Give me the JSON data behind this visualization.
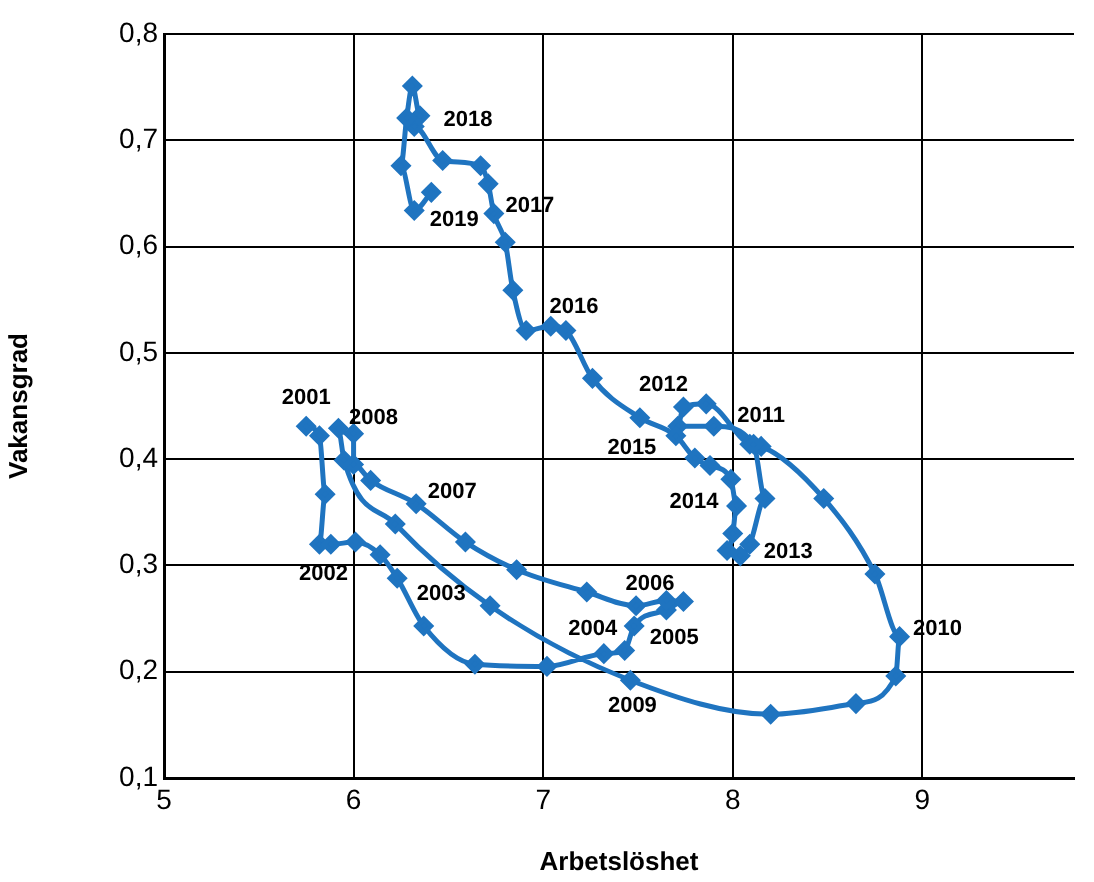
{
  "chart_data": {
    "type": "line",
    "xlabel": "Arbetslöshet",
    "ylabel": "Vakansgrad",
    "marker": "diamond",
    "line_style": "solid",
    "grid": true,
    "legend": false,
    "xlim": [
      5,
      9.8
    ],
    "xticks": [
      5,
      6,
      7,
      8,
      9
    ],
    "ylim": [
      0.1,
      0.8
    ],
    "yticks": [
      {
        "value": 0.1,
        "label": "0,1"
      },
      {
        "value": 0.2,
        "label": "0,2"
      },
      {
        "value": 0.3,
        "label": "0,3"
      },
      {
        "value": 0.4,
        "label": "0,4"
      },
      {
        "value": 0.5,
        "label": "0,5"
      },
      {
        "value": 0.6,
        "label": "0,6"
      },
      {
        "value": 0.7,
        "label": "0,7"
      },
      {
        "value": 0.8,
        "label": "0,8"
      }
    ],
    "series": [
      {
        "color": "#1f74c0",
        "x": [
          5.75,
          5.82,
          5.85,
          5.82,
          5.88,
          6.01,
          6.14,
          6.23,
          6.37,
          6.64,
          7.02,
          7.32,
          7.43,
          7.48,
          7.65,
          7.74,
          7.65,
          7.49,
          7.23,
          6.86,
          6.59,
          6.33,
          6.09,
          6.0,
          6.0,
          5.92,
          5.95,
          6.22,
          6.72,
          7.46,
          8.2,
          8.65,
          8.86,
          8.88,
          8.75,
          8.48,
          8.15,
          8.09,
          7.86,
          7.74,
          7.71,
          7.9,
          8.11,
          8.17,
          8.09,
          8.04,
          7.97,
          8.0,
          8.02,
          7.99,
          7.88,
          7.8,
          7.7,
          7.51,
          7.26,
          7.12,
          7.04,
          6.91,
          6.84,
          6.8,
          6.74,
          6.71,
          6.67,
          6.47,
          6.32,
          6.35,
          6.31,
          6.28,
          6.25,
          6.32,
          6.41
        ],
        "values": [
          0.431,
          0.422,
          0.367,
          0.32,
          0.32,
          0.322,
          0.31,
          0.288,
          0.243,
          0.207,
          0.205,
          0.217,
          0.22,
          0.243,
          0.258,
          0.266,
          0.267,
          0.262,
          0.275,
          0.296,
          0.322,
          0.358,
          0.38,
          0.395,
          0.424,
          0.429,
          0.399,
          0.339,
          0.262,
          0.192,
          0.16,
          0.17,
          0.196,
          0.233,
          0.292,
          0.363,
          0.412,
          0.414,
          0.452,
          0.449,
          0.431,
          0.431,
          0.414,
          0.363,
          0.32,
          0.309,
          0.314,
          0.33,
          0.356,
          0.381,
          0.394,
          0.401,
          0.422,
          0.439,
          0.476,
          0.521,
          0.525,
          0.521,
          0.559,
          0.604,
          0.631,
          0.659,
          0.676,
          0.681,
          0.713,
          0.723,
          0.751,
          0.721,
          0.676,
          0.634,
          0.651
        ]
      }
    ],
    "annotations": [
      {
        "text": "2001",
        "x": 5.75,
        "y": 0.431
      },
      {
        "text": "2002",
        "x": 5.82,
        "y": 0.32
      },
      {
        "text": "2003",
        "x": 6.23,
        "y": 0.288
      },
      {
        "text": "2004",
        "x": 7.43,
        "y": 0.22
      },
      {
        "text": "2005",
        "x": 7.48,
        "y": 0.243
      },
      {
        "text": "2006",
        "x": 7.49,
        "y": 0.262
      },
      {
        "text": "2007",
        "x": 6.33,
        "y": 0.358
      },
      {
        "text": "2008",
        "x": 6.0,
        "y": 0.424
      },
      {
        "text": "2009",
        "x": 7.46,
        "y": 0.192
      },
      {
        "text": "2010",
        "x": 8.88,
        "y": 0.233
      },
      {
        "text": "2011",
        "x": 8.15,
        "y": 0.412
      },
      {
        "text": "2012",
        "x": 7.74,
        "y": 0.449
      },
      {
        "text": "2013",
        "x": 8.04,
        "y": 0.309
      },
      {
        "text": "2014",
        "x": 7.88,
        "y": 0.394
      },
      {
        "text": "2015",
        "x": 7.7,
        "y": 0.422
      },
      {
        "text": "2016",
        "x": 7.12,
        "y": 0.521
      },
      {
        "text": "2017",
        "x": 6.74,
        "y": 0.631
      },
      {
        "text": "2018",
        "x": 6.35,
        "y": 0.723
      },
      {
        "text": "2019",
        "x": 6.32,
        "y": 0.634
      }
    ]
  }
}
